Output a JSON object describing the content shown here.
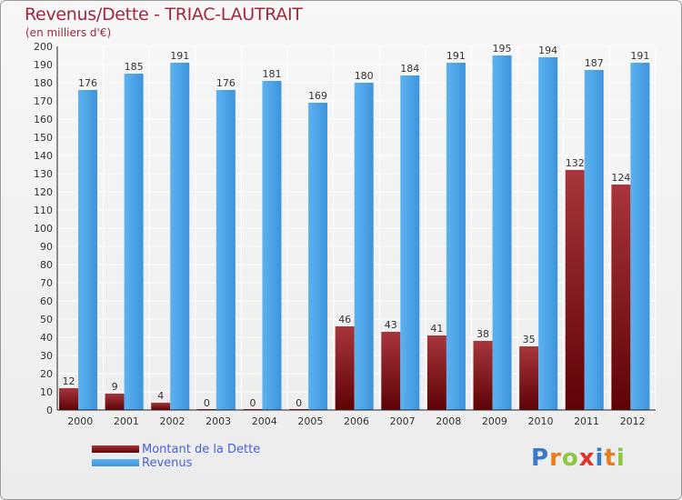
{
  "page": {
    "title": "Revenus/Dette - TRIAC-LAUTRAIT",
    "subtitle": "(en milliers d'€)"
  },
  "legend": {
    "items": [
      {
        "label": "Montant de la Dette",
        "color": "#7a0b10"
      },
      {
        "label": "Revenus",
        "color": "#4aa0e6"
      }
    ]
  },
  "logo": {
    "letters": [
      {
        "char": "P",
        "color": "#3a78c8"
      },
      {
        "char": "r",
        "color": "#e87d1e"
      },
      {
        "char": "o",
        "color": "#8dc63f"
      },
      {
        "char": "x",
        "color": "#e0312b"
      },
      {
        "char": "i",
        "color": "#3a78c8"
      },
      {
        "char": "t",
        "color": "#e87d1e"
      },
      {
        "char": "i",
        "color": "#8dc63f"
      }
    ]
  },
  "chart_data": {
    "type": "bar",
    "categories": [
      "2000",
      "2001",
      "2002",
      "2003",
      "2004",
      "2005",
      "2006",
      "2007",
      "2008",
      "2009",
      "2010",
      "2011",
      "2012"
    ],
    "series": [
      {
        "name": "Montant de la Dette",
        "color": "#7a0b10",
        "values": [
          12,
          9,
          4,
          0,
          0,
          0,
          46,
          43,
          41,
          38,
          35,
          132,
          124
        ]
      },
      {
        "name": "Revenus",
        "color": "#4aa0e6",
        "values": [
          176,
          185,
          191,
          176,
          181,
          169,
          180,
          184,
          191,
          195,
          194,
          187,
          191
        ]
      }
    ],
    "ylim": [
      0,
      200
    ],
    "ytick_step": 10,
    "grid": true,
    "legend_position": "bottom-left"
  }
}
